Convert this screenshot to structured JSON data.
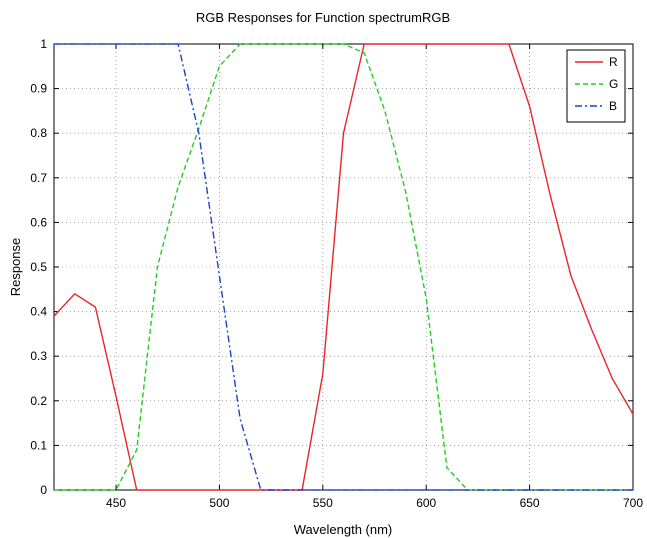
{
  "chart_data": {
    "type": "line",
    "title": "RGB Responses for Function spectrumRGB",
    "xlabel": "Wavelength (nm)",
    "ylabel": "Response",
    "xlim": [
      420,
      700
    ],
    "ylim": [
      0,
      1
    ],
    "xticks": [
      450,
      500,
      550,
      600,
      650,
      700
    ],
    "yticks": [
      0,
      0.1,
      0.2,
      0.3,
      0.4,
      0.5,
      0.6,
      0.7,
      0.8,
      0.9,
      1
    ],
    "grid": true,
    "legend_position": "top-right",
    "series": [
      {
        "name": "R",
        "color": "#e8262a",
        "dash": "solid",
        "x": [
          420,
          430,
          440,
          450,
          460,
          470,
          480,
          490,
          500,
          510,
          520,
          530,
          540,
          550,
          560,
          570,
          580,
          590,
          600,
          610,
          620,
          630,
          640,
          650,
          660,
          670,
          680,
          690,
          700
        ],
        "y": [
          0.39,
          0.44,
          0.41,
          0.21,
          0,
          0,
          0,
          0,
          0,
          0,
          0,
          0,
          0,
          0.26,
          0.8,
          1,
          1,
          1,
          1,
          1,
          1,
          1,
          1,
          0.86,
          0.66,
          0.48,
          0.36,
          0.25,
          0.17
        ]
      },
      {
        "name": "G",
        "color": "#22cc22",
        "dash": "dashed",
        "x": [
          420,
          430,
          440,
          450,
          460,
          470,
          480,
          490,
          500,
          510,
          520,
          530,
          540,
          550,
          560,
          570,
          580,
          590,
          600,
          610,
          620,
          630,
          640,
          650,
          660,
          670,
          680,
          690,
          700
        ],
        "y": [
          0,
          0,
          0,
          0,
          0.09,
          0.5,
          0.68,
          0.81,
          0.95,
          1,
          1,
          1,
          1,
          1,
          1,
          0.98,
          0.85,
          0.67,
          0.43,
          0.05,
          0,
          0,
          0,
          0,
          0,
          0,
          0,
          0,
          0
        ]
      },
      {
        "name": "B",
        "color": "#1f3fcf",
        "dash": "dashdot",
        "x": [
          420,
          430,
          440,
          450,
          460,
          470,
          480,
          490,
          500,
          510,
          520,
          530,
          540,
          550,
          560,
          570,
          580,
          590,
          600,
          610,
          620,
          630,
          640,
          650,
          660,
          670,
          680,
          690,
          700
        ],
        "y": [
          1,
          1,
          1,
          1,
          1,
          1,
          1,
          0.8,
          0.48,
          0.16,
          0,
          0,
          0,
          0,
          0,
          0,
          0,
          0,
          0,
          0,
          0,
          0,
          0,
          0,
          0,
          0,
          0,
          0,
          0
        ]
      }
    ]
  }
}
